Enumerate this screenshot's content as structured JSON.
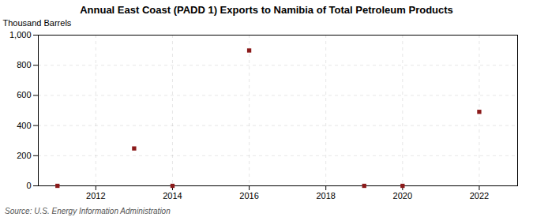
{
  "chart_data": {
    "type": "scatter",
    "title": "Annual East Coast (PADD 1) Exports to Namibia of Total Petroleum Products",
    "ylabel": "Thousand Barrels",
    "annotation": "Source: U.S. Energy Information Administration",
    "x": [
      2011,
      2013,
      2014,
      2016,
      2019,
      2020,
      2022
    ],
    "values": [
      0,
      248,
      0,
      898,
      0,
      0,
      491
    ],
    "color": "#8b1a1a",
    "marker": "square",
    "xlim": [
      2010.5,
      2023
    ],
    "xticks": [
      2012,
      2014,
      2016,
      2018,
      2020,
      2022
    ],
    "ylim": [
      0,
      1000
    ],
    "yticks": [
      0,
      200,
      400,
      600,
      800,
      {
        "value": 1000,
        "label": "1,000"
      }
    ],
    "grid": true
  }
}
